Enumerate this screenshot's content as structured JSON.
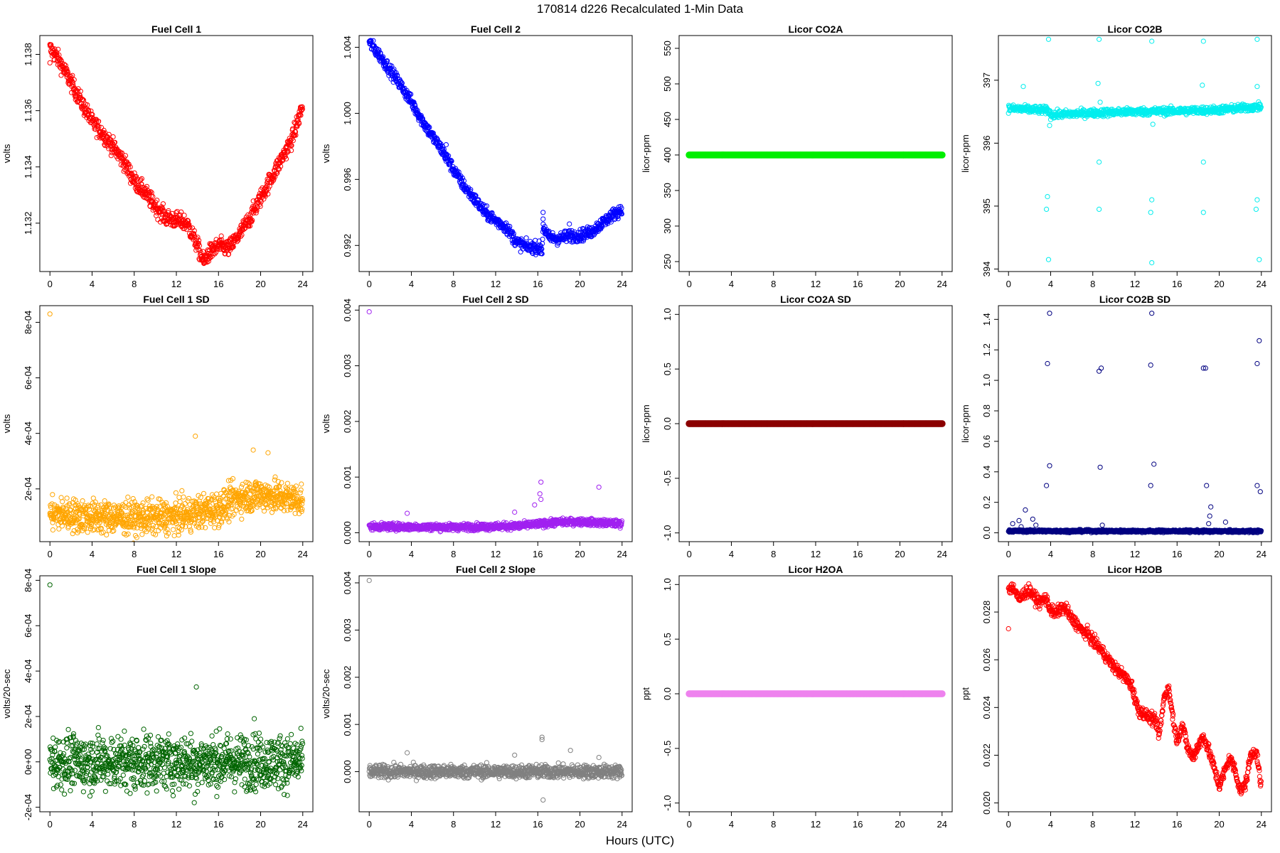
{
  "figure": {
    "title": "170814   d226   Recalculated 1-Min Data",
    "xlabel": "Hours (UTC)"
  },
  "chart_data": [
    {
      "type": "scatter",
      "title": "Fuel Cell 1",
      "ylabel": "volts",
      "color": "#ff0000",
      "xlim": [
        -0.96,
        24.96
      ],
      "ylim": [
        1.13028,
        1.13867
      ],
      "xticks": [
        "0",
        "4",
        "8",
        "12",
        "16",
        "20",
        "24"
      ],
      "yticks": [
        "1.132",
        "1.134",
        "1.136",
        "1.138"
      ],
      "series_shape": "trend",
      "trend": [
        [
          0,
          1.1382
        ],
        [
          0.5,
          1.138
        ],
        [
          1,
          1.1377
        ],
        [
          2,
          1.137
        ],
        [
          3,
          1.1363
        ],
        [
          4,
          1.1356
        ],
        [
          5,
          1.1352
        ],
        [
          6,
          1.1347
        ],
        [
          7,
          1.1342
        ],
        [
          8,
          1.1335
        ],
        [
          9,
          1.1331
        ],
        [
          10,
          1.1326
        ],
        [
          11,
          1.1322
        ],
        [
          12,
          1.1321
        ],
        [
          13,
          1.132
        ],
        [
          14,
          1.1312
        ],
        [
          14.6,
          1.1306
        ],
        [
          15,
          1.1309
        ],
        [
          16,
          1.1312
        ],
        [
          17,
          1.1311
        ],
        [
          18,
          1.1316
        ],
        [
          19,
          1.1322
        ],
        [
          20,
          1.1329
        ],
        [
          21,
          1.1336
        ],
        [
          22,
          1.1343
        ],
        [
          23,
          1.135
        ],
        [
          24,
          1.1362
        ]
      ],
      "noise": 0.00015,
      "outliers": [
        [
          0,
          1.1377
        ]
      ]
    },
    {
      "type": "scatter",
      "title": "Fuel Cell 2",
      "ylabel": "volts",
      "color": "#0000ff",
      "xlim": [
        -0.96,
        24.96
      ],
      "ylim": [
        0.99042,
        1.00471
      ],
      "xticks": [
        "0",
        "4",
        "8",
        "12",
        "16",
        "20",
        "24"
      ],
      "yticks": [
        "0.992",
        "0.996",
        "1.000",
        "1.004"
      ],
      "series_shape": "trend",
      "trend": [
        [
          0,
          1.0043
        ],
        [
          1,
          1.0035
        ],
        [
          2,
          1.0026
        ],
        [
          3,
          1.0017
        ],
        [
          4,
          1.0007
        ],
        [
          5,
          0.9996
        ],
        [
          6,
          0.9986
        ],
        [
          7,
          0.9977
        ],
        [
          8,
          0.9966
        ],
        [
          9,
          0.9956
        ],
        [
          10,
          0.9948
        ],
        [
          11,
          0.994
        ],
        [
          12,
          0.9935
        ],
        [
          13,
          0.9931
        ],
        [
          14,
          0.9922
        ],
        [
          15,
          0.9919
        ],
        [
          16,
          0.9919
        ],
        [
          16.4,
          0.9917
        ],
        [
          16.5,
          0.9932
        ],
        [
          17,
          0.9925
        ],
        [
          18,
          0.9924
        ],
        [
          19,
          0.9926
        ],
        [
          20,
          0.9926
        ],
        [
          21,
          0.9928
        ],
        [
          22,
          0.9933
        ],
        [
          23,
          0.9938
        ],
        [
          24,
          0.9942
        ]
      ],
      "noise": 0.00018,
      "outliers": [
        [
          7.3,
          0.9981
        ],
        [
          7.3,
          0.9971
        ],
        [
          16.5,
          0.994
        ],
        [
          16.5,
          0.9936
        ],
        [
          19,
          0.9933
        ]
      ]
    },
    {
      "type": "scatter",
      "title": "Licor CO2A",
      "ylabel": "licor-ppm",
      "color": "#00ee00",
      "xlim": [
        -0.96,
        24.96
      ],
      "ylim": [
        236,
        568
      ],
      "xticks": [
        "0",
        "4",
        "8",
        "12",
        "16",
        "20",
        "24"
      ],
      "yticks": [
        "250",
        "300",
        "350",
        "400",
        "450",
        "500",
        "550"
      ],
      "series_shape": "constant",
      "value": 400,
      "noise": 0,
      "outliers": []
    },
    {
      "type": "scatter",
      "title": "Licor CO2B",
      "ylabel": "licor-ppm",
      "color": "#00eeee",
      "xlim": [
        -0.96,
        24.96
      ],
      "ylim": [
        393.96,
        397.71
      ],
      "xticks": [
        "0",
        "4",
        "8",
        "12",
        "16",
        "20",
        "24"
      ],
      "yticks": [
        "394",
        "395",
        "396",
        "397"
      ],
      "series_shape": "trend",
      "trend": [
        [
          0,
          396.55
        ],
        [
          3.8,
          396.52
        ],
        [
          4,
          396.45
        ],
        [
          8,
          396.48
        ],
        [
          12,
          396.5
        ],
        [
          16,
          396.51
        ],
        [
          20,
          396.53
        ],
        [
          24,
          396.58
        ]
      ],
      "noise": 0.03,
      "outliers": [
        [
          3.8,
          397.65
        ],
        [
          3.8,
          394.15
        ],
        [
          3.6,
          394.95
        ],
        [
          3.7,
          395.15
        ],
        [
          8.6,
          397.65
        ],
        [
          8.6,
          394.95
        ],
        [
          8.6,
          395.7
        ],
        [
          13.6,
          397.62
        ],
        [
          13.6,
          394.1
        ],
        [
          13.5,
          394.9
        ],
        [
          13.6,
          395.1
        ],
        [
          18.5,
          397.62
        ],
        [
          18.5,
          394.9
        ],
        [
          18.5,
          395.7
        ],
        [
          23.6,
          397.65
        ],
        [
          23.8,
          394.15
        ],
        [
          23.5,
          394.95
        ],
        [
          23.6,
          395.1
        ],
        [
          1.4,
          396.9
        ],
        [
          8.5,
          396.95
        ],
        [
          18.4,
          396.92
        ],
        [
          23.6,
          396.9
        ],
        [
          3.9,
          396.28
        ],
        [
          13.7,
          396.3
        ],
        [
          8.7,
          396.65
        ],
        [
          23.8,
          396.62
        ]
      ]
    },
    {
      "type": "scatter",
      "title": "Fuel Cell 1 SD",
      "ylabel": "volts",
      "color": "#ffa500",
      "xlim": [
        -0.96,
        24.96
      ],
      "ylim": [
        1e-05,
        0.00086
      ],
      "xticks": [
        "0",
        "4",
        "8",
        "12",
        "16",
        "20",
        "24"
      ],
      "yticks": [
        "2e-04",
        "4e-04",
        "6e-04",
        "8e-04"
      ],
      "series_shape": "scatter-band",
      "trend": [
        [
          0,
          0.00011
        ],
        [
          4,
          0.0001
        ],
        [
          8,
          9.5e-05
        ],
        [
          12,
          0.0001
        ],
        [
          16,
          0.00013
        ],
        [
          18,
          0.00017
        ],
        [
          20,
          0.00018
        ],
        [
          24,
          0.00016
        ]
      ],
      "noise": 3e-05,
      "outliers": [
        [
          0,
          0.00083
        ],
        [
          13.8,
          0.00039
        ],
        [
          19.3,
          0.00034
        ],
        [
          20.7,
          0.00033
        ]
      ]
    },
    {
      "type": "scatter",
      "title": "Fuel Cell 2 SD",
      "ylabel": "volts",
      "color": "#a020f0",
      "xlim": [
        -0.96,
        24.96
      ],
      "ylim": [
        -0.00016,
        0.00408
      ],
      "xticks": [
        "0",
        "4",
        "8",
        "12",
        "16",
        "20",
        "24"
      ],
      "yticks": [
        "0.000",
        "0.001",
        "0.002",
        "0.003",
        "0.004"
      ],
      "series_shape": "scatter-band",
      "trend": [
        [
          0,
          0.00011
        ],
        [
          8,
          0.0001
        ],
        [
          14,
          0.00012
        ],
        [
          18,
          0.00019
        ],
        [
          20,
          0.0002
        ],
        [
          24,
          0.00016
        ]
      ],
      "noise": 3e-05,
      "outliers": [
        [
          0,
          0.00397
        ],
        [
          3.6,
          0.00035
        ],
        [
          13.8,
          0.00037
        ],
        [
          15.7,
          0.0005
        ],
        [
          16.2,
          0.0007
        ],
        [
          16.3,
          0.00091
        ],
        [
          16.3,
          0.0006
        ],
        [
          21.8,
          0.00082
        ]
      ]
    },
    {
      "type": "scatter",
      "title": "Licor CO2A SD",
      "ylabel": "licor-ppm",
      "color": "#8b0000",
      "xlim": [
        -0.96,
        24.96
      ],
      "ylim": [
        -1.08,
        1.08
      ],
      "xticks": [
        "0",
        "4",
        "8",
        "12",
        "16",
        "20",
        "24"
      ],
      "yticks": [
        "-1.0",
        "-0.5",
        "0.0",
        "0.5",
        "1.0"
      ],
      "series_shape": "constant",
      "value": 0,
      "noise": 0,
      "outliers": []
    },
    {
      "type": "scatter",
      "title": "Licor CO2B SD",
      "ylabel": "licor-ppm",
      "color": "#000080",
      "xlim": [
        -0.96,
        24.96
      ],
      "ylim": [
        -0.058,
        1.49
      ],
      "xticks": [
        "0",
        "4",
        "8",
        "12",
        "16",
        "20",
        "24"
      ],
      "yticks": [
        "0.0",
        "0.2",
        "0.4",
        "0.6",
        "0.8",
        "1.0",
        "1.2",
        "1.4"
      ],
      "series_shape": "scatter-band",
      "trend": [
        [
          0,
          0.012
        ],
        [
          24,
          0.01
        ]
      ],
      "noise": 0.004,
      "outliers": [
        [
          3.9,
          1.44
        ],
        [
          3.7,
          1.11
        ],
        [
          3.9,
          0.44
        ],
        [
          3.6,
          0.31
        ],
        [
          8.6,
          1.06
        ],
        [
          8.8,
          1.08
        ],
        [
          8.7,
          0.43
        ],
        [
          8.9,
          0.05
        ],
        [
          13.6,
          1.44
        ],
        [
          13.5,
          1.1
        ],
        [
          13.8,
          0.45
        ],
        [
          13.5,
          0.31
        ],
        [
          18.5,
          1.08
        ],
        [
          18.7,
          1.08
        ],
        [
          18.8,
          0.31
        ],
        [
          19.2,
          0.17
        ],
        [
          19.1,
          0.11
        ],
        [
          23.8,
          1.26
        ],
        [
          23.6,
          1.11
        ],
        [
          23.6,
          0.31
        ],
        [
          23.9,
          0.27
        ],
        [
          1.0,
          0.08
        ],
        [
          1.6,
          0.15
        ],
        [
          2.3,
          0.09
        ],
        [
          0.4,
          0.06
        ],
        [
          1.2,
          0.04
        ],
        [
          19.0,
          0.06
        ],
        [
          20.6,
          0.07
        ],
        [
          2.6,
          0.05
        ]
      ]
    },
    {
      "type": "scatter",
      "title": "Fuel Cell 1 Slope",
      "ylabel": "volts/20-sec",
      "color": "#006400",
      "xlim": [
        -0.96,
        24.96
      ],
      "ylim": [
        -0.00022,
        0.00082
      ],
      "xticks": [
        "0",
        "4",
        "8",
        "12",
        "16",
        "20",
        "24"
      ],
      "yticks": [
        "-2e-04",
        "0e+00",
        "2e-04",
        "4e-04",
        "6e-04",
        "8e-04"
      ],
      "series_shape": "scatter-band",
      "trend": [
        [
          0,
          0.0
        ],
        [
          24,
          0.0
        ]
      ],
      "noise": 6e-05,
      "outliers": [
        [
          0,
          0.00078
        ],
        [
          13.9,
          0.00033
        ],
        [
          13.7,
          -0.00018
        ],
        [
          8.1,
          -0.00012
        ],
        [
          19.4,
          0.00019
        ]
      ]
    },
    {
      "type": "scatter",
      "title": "Fuel Cell 2 Slope",
      "ylabel": "volts/20-sec",
      "color": "#808080",
      "xlim": [
        -0.96,
        24.96
      ],
      "ylim": [
        -0.00085,
        0.00415
      ],
      "xticks": [
        "0",
        "4",
        "8",
        "12",
        "16",
        "20",
        "24"
      ],
      "yticks": [
        "0.000",
        "0.001",
        "0.002",
        "0.003",
        "0.004"
      ],
      "series_shape": "scatter-band",
      "trend": [
        [
          0,
          0.0
        ],
        [
          24,
          0.0
        ]
      ],
      "noise": 7e-05,
      "outliers": [
        [
          0,
          0.00405
        ],
        [
          3.6,
          0.0004
        ],
        [
          13.8,
          0.00035
        ],
        [
          16.4,
          0.00073
        ],
        [
          16.4,
          0.00068
        ],
        [
          16.5,
          -0.0006
        ],
        [
          19.1,
          0.00045
        ],
        [
          21.8,
          0.0003
        ]
      ]
    },
    {
      "type": "scatter",
      "title": "Licor H2OA",
      "ylabel": "ppt",
      "color": "#ee82ee",
      "xlim": [
        -0.96,
        24.96
      ],
      "ylim": [
        -1.08,
        1.08
      ],
      "xticks": [
        "0",
        "4",
        "8",
        "12",
        "16",
        "20",
        "24"
      ],
      "yticks": [
        "-1.0",
        "-0.5",
        "0.0",
        "0.5",
        "1.0"
      ],
      "series_shape": "constant",
      "value": 0,
      "noise": 0,
      "outliers": []
    },
    {
      "type": "scatter",
      "title": "Licor H2OB",
      "ylabel": "ppt",
      "color": "#ff0000",
      "xlim": [
        -0.96,
        24.96
      ],
      "ylim": [
        0.01963,
        0.02952
      ],
      "xticks": [
        "0",
        "4",
        "8",
        "12",
        "16",
        "20",
        "24"
      ],
      "yticks": [
        "0.020",
        "0.022",
        "0.024",
        "0.026",
        "0.028"
      ],
      "series_shape": "trend",
      "trend": [
        [
          0,
          0.029
        ],
        [
          0.5,
          0.029
        ],
        [
          1,
          0.0285
        ],
        [
          1.5,
          0.0288
        ],
        [
          2,
          0.0289
        ],
        [
          2.5,
          0.0286
        ],
        [
          3,
          0.0284
        ],
        [
          3.5,
          0.0286
        ],
        [
          4,
          0.0281
        ],
        [
          4.5,
          0.0279
        ],
        [
          5,
          0.0282
        ],
        [
          5.5,
          0.0281
        ],
        [
          6,
          0.0277
        ],
        [
          6.5,
          0.0275
        ],
        [
          7,
          0.0272
        ],
        [
          7.5,
          0.0271
        ],
        [
          8,
          0.0268
        ],
        [
          9,
          0.0263
        ],
        [
          10,
          0.0257
        ],
        [
          11,
          0.0253
        ],
        [
          11.7,
          0.0249
        ],
        [
          12.3,
          0.0239
        ],
        [
          13,
          0.0237
        ],
        [
          14,
          0.0234
        ],
        [
          14.3,
          0.0228
        ],
        [
          14.8,
          0.0245
        ],
        [
          15.2,
          0.0248
        ],
        [
          15.7,
          0.0233
        ],
        [
          16,
          0.0226
        ],
        [
          16.5,
          0.0233
        ],
        [
          17,
          0.0223
        ],
        [
          17.5,
          0.0219
        ],
        [
          18,
          0.0224
        ],
        [
          18.5,
          0.0228
        ],
        [
          19,
          0.0222
        ],
        [
          19.5,
          0.0215
        ],
        [
          20,
          0.0207
        ],
        [
          20.5,
          0.0213
        ],
        [
          21,
          0.0219
        ],
        [
          21.5,
          0.0214
        ],
        [
          22,
          0.0205
        ],
        [
          22.5,
          0.0208
        ],
        [
          23,
          0.022
        ],
        [
          23.5,
          0.0222
        ],
        [
          24,
          0.0206
        ]
      ],
      "noise": 0.00012,
      "outliers": [
        [
          0,
          0.0273
        ]
      ]
    }
  ]
}
